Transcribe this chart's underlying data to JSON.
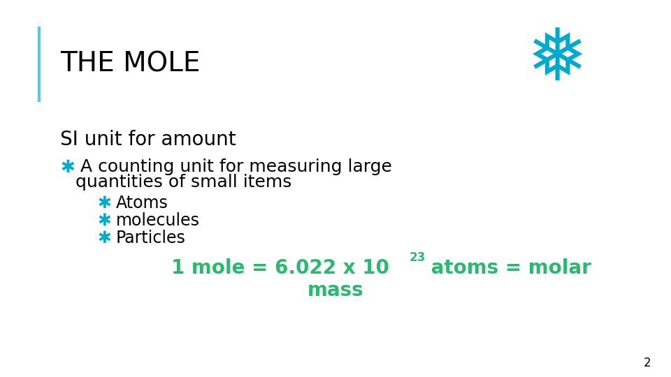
{
  "background_color": "#ffffff",
  "title": "THE MOLE",
  "title_color": "#000000",
  "title_fontsize": 28,
  "title_bold": false,
  "accent_line_color": "#5bc8dc",
  "subtitle": "SI unit for amount",
  "subtitle_color": "#000000",
  "subtitle_fontsize": 20,
  "subtitle_bold": false,
  "bullet_color": "#00aacc",
  "bullet_char": "✱",
  "bullet1_line1": "A counting unit for measuring large",
  "bullet1_line2": "quantities of small items",
  "bullet1_fontsize": 18,
  "bullet1_color": "#000000",
  "sub_bullets": [
    "Atoms",
    "molecules",
    "Particles"
  ],
  "sub_bullet_fontsize": 17,
  "sub_bullet_color": "#000000",
  "formula_left": "1 mole = 6.022 x 10",
  "formula_sup": "23",
  "formula_right": " atoms = molar",
  "formula_line2": "mass",
  "formula_color": "#2db870",
  "formula_fontsize": 20,
  "formula_bold": true,
  "page_number": "2",
  "page_number_color": "#000000",
  "page_number_fontsize": 12,
  "snowflake_color": "#00aacc"
}
